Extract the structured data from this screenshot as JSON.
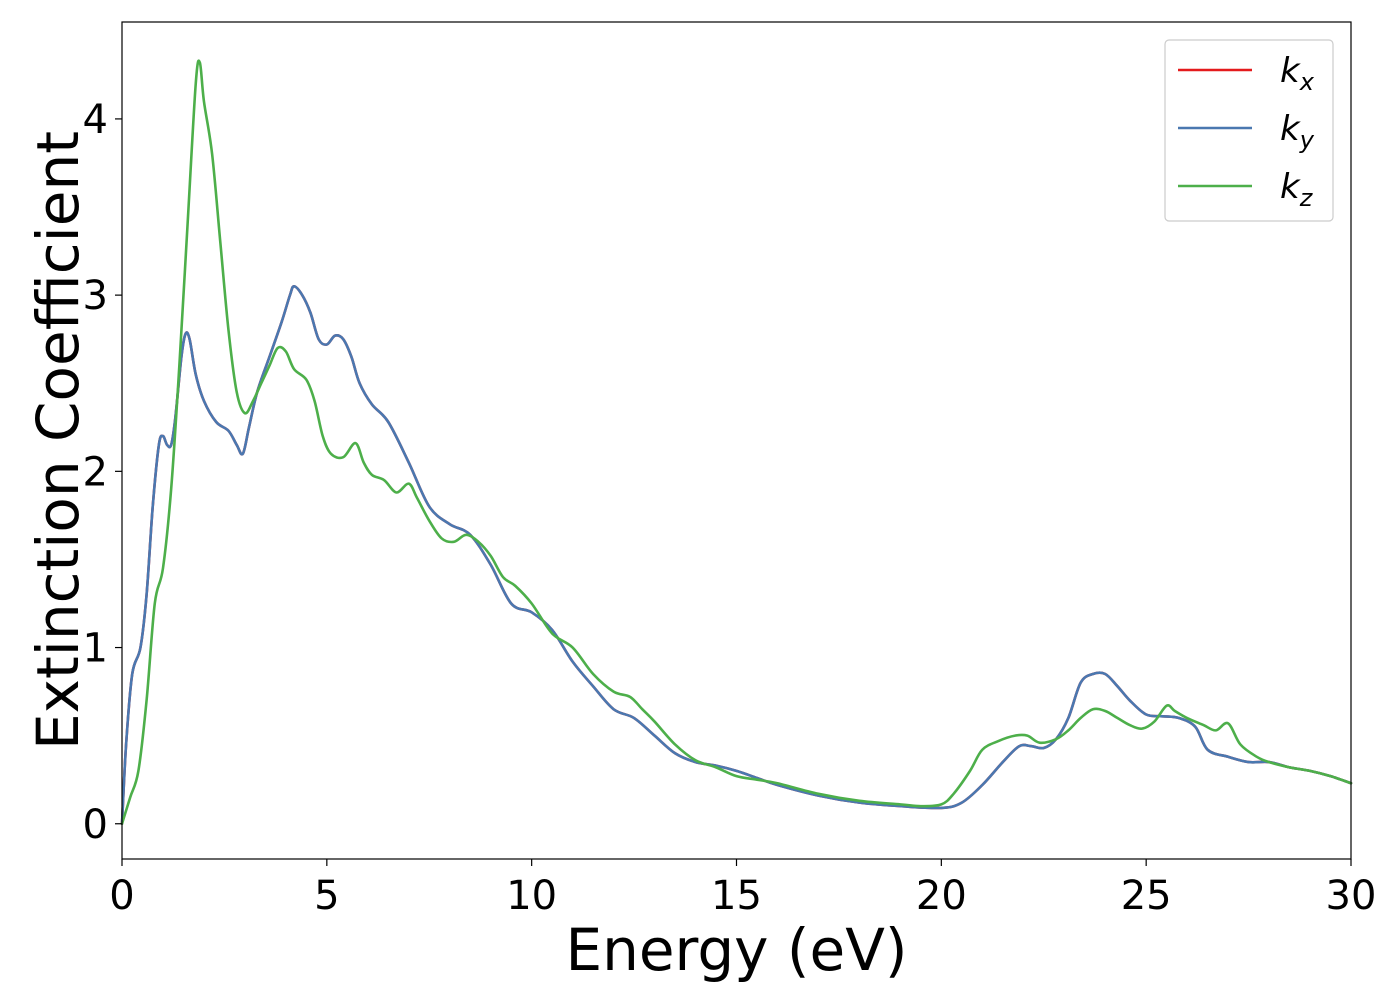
{
  "chart_data": {
    "type": "line",
    "xlabel": "Energy (eV)",
    "ylabel": "Extinction Coefficient",
    "xlim": [
      0,
      30
    ],
    "ylim": [
      -0.2,
      4.55
    ],
    "xticks": [
      0,
      5,
      10,
      15,
      20,
      25,
      30
    ],
    "yticks": [
      0,
      1,
      2,
      3,
      4
    ],
    "xtick_labels": [
      "0",
      "5",
      "10",
      "15",
      "20",
      "25",
      "30"
    ],
    "ytick_labels": [
      "0",
      "1",
      "2",
      "3",
      "4"
    ],
    "grid": false,
    "legend_position": "top-right",
    "series": [
      {
        "name": "k",
        "subscript": "x",
        "color": "#e41a1c",
        "points": [
          [
            0,
            0
          ],
          [
            0.1,
            0.45
          ],
          [
            0.25,
            0.85
          ],
          [
            0.45,
            1.0
          ],
          [
            0.6,
            1.3
          ],
          [
            0.75,
            1.8
          ],
          [
            0.9,
            2.15
          ],
          [
            1.0,
            2.2
          ],
          [
            1.1,
            2.15
          ],
          [
            1.2,
            2.15
          ],
          [
            1.3,
            2.3
          ],
          [
            1.45,
            2.65
          ],
          [
            1.55,
            2.78
          ],
          [
            1.65,
            2.75
          ],
          [
            1.8,
            2.55
          ],
          [
            2.0,
            2.4
          ],
          [
            2.3,
            2.28
          ],
          [
            2.6,
            2.23
          ],
          [
            2.8,
            2.15
          ],
          [
            2.95,
            2.1
          ],
          [
            3.1,
            2.25
          ],
          [
            3.3,
            2.45
          ],
          [
            3.6,
            2.65
          ],
          [
            3.9,
            2.85
          ],
          [
            4.1,
            3.0
          ],
          [
            4.2,
            3.05
          ],
          [
            4.4,
            3.0
          ],
          [
            4.6,
            2.9
          ],
          [
            4.8,
            2.75
          ],
          [
            5.0,
            2.72
          ],
          [
            5.2,
            2.77
          ],
          [
            5.4,
            2.75
          ],
          [
            5.6,
            2.65
          ],
          [
            5.8,
            2.5
          ],
          [
            6.1,
            2.38
          ],
          [
            6.5,
            2.28
          ],
          [
            7.0,
            2.05
          ],
          [
            7.5,
            1.8
          ],
          [
            8.0,
            1.7
          ],
          [
            8.5,
            1.64
          ],
          [
            9.0,
            1.47
          ],
          [
            9.5,
            1.25
          ],
          [
            10.0,
            1.2
          ],
          [
            10.5,
            1.1
          ],
          [
            11.0,
            0.92
          ],
          [
            11.5,
            0.78
          ],
          [
            12.0,
            0.65
          ],
          [
            12.5,
            0.6
          ],
          [
            13.0,
            0.5
          ],
          [
            13.5,
            0.4
          ],
          [
            14.0,
            0.35
          ],
          [
            14.5,
            0.33
          ],
          [
            15.0,
            0.3
          ],
          [
            15.5,
            0.26
          ],
          [
            16.0,
            0.22
          ],
          [
            17.0,
            0.16
          ],
          [
            18.0,
            0.12
          ],
          [
            19.0,
            0.1
          ],
          [
            20.0,
            0.09
          ],
          [
            20.5,
            0.12
          ],
          [
            21.0,
            0.22
          ],
          [
            21.5,
            0.35
          ],
          [
            21.9,
            0.44
          ],
          [
            22.2,
            0.44
          ],
          [
            22.5,
            0.43
          ],
          [
            22.8,
            0.48
          ],
          [
            23.1,
            0.6
          ],
          [
            23.4,
            0.8
          ],
          [
            23.7,
            0.85
          ],
          [
            24.0,
            0.85
          ],
          [
            24.3,
            0.78
          ],
          [
            24.6,
            0.7
          ],
          [
            25.0,
            0.62
          ],
          [
            25.4,
            0.61
          ],
          [
            25.8,
            0.6
          ],
          [
            26.2,
            0.55
          ],
          [
            26.5,
            0.42
          ],
          [
            27.0,
            0.38
          ],
          [
            27.5,
            0.35
          ],
          [
            28.0,
            0.35
          ],
          [
            28.5,
            0.32
          ],
          [
            29.0,
            0.3
          ],
          [
            29.5,
            0.27
          ],
          [
            30.0,
            0.23
          ]
        ]
      },
      {
        "name": "k",
        "subscript": "y",
        "color": "#4a78b0",
        "points": [
          [
            0,
            0
          ],
          [
            0.1,
            0.45
          ],
          [
            0.25,
            0.85
          ],
          [
            0.45,
            1.0
          ],
          [
            0.6,
            1.3
          ],
          [
            0.75,
            1.8
          ],
          [
            0.9,
            2.15
          ],
          [
            1.0,
            2.2
          ],
          [
            1.1,
            2.15
          ],
          [
            1.2,
            2.15
          ],
          [
            1.3,
            2.3
          ],
          [
            1.45,
            2.65
          ],
          [
            1.55,
            2.78
          ],
          [
            1.65,
            2.75
          ],
          [
            1.8,
            2.55
          ],
          [
            2.0,
            2.4
          ],
          [
            2.3,
            2.28
          ],
          [
            2.6,
            2.23
          ],
          [
            2.8,
            2.15
          ],
          [
            2.95,
            2.1
          ],
          [
            3.1,
            2.25
          ],
          [
            3.3,
            2.45
          ],
          [
            3.6,
            2.65
          ],
          [
            3.9,
            2.85
          ],
          [
            4.1,
            3.0
          ],
          [
            4.2,
            3.05
          ],
          [
            4.4,
            3.0
          ],
          [
            4.6,
            2.9
          ],
          [
            4.8,
            2.75
          ],
          [
            5.0,
            2.72
          ],
          [
            5.2,
            2.77
          ],
          [
            5.4,
            2.75
          ],
          [
            5.6,
            2.65
          ],
          [
            5.8,
            2.5
          ],
          [
            6.1,
            2.38
          ],
          [
            6.5,
            2.28
          ],
          [
            7.0,
            2.05
          ],
          [
            7.5,
            1.8
          ],
          [
            8.0,
            1.7
          ],
          [
            8.5,
            1.64
          ],
          [
            9.0,
            1.47
          ],
          [
            9.5,
            1.25
          ],
          [
            10.0,
            1.2
          ],
          [
            10.5,
            1.1
          ],
          [
            11.0,
            0.92
          ],
          [
            11.5,
            0.78
          ],
          [
            12.0,
            0.65
          ],
          [
            12.5,
            0.6
          ],
          [
            13.0,
            0.5
          ],
          [
            13.5,
            0.4
          ],
          [
            14.0,
            0.35
          ],
          [
            14.5,
            0.33
          ],
          [
            15.0,
            0.3
          ],
          [
            15.5,
            0.26
          ],
          [
            16.0,
            0.22
          ],
          [
            17.0,
            0.16
          ],
          [
            18.0,
            0.12
          ],
          [
            19.0,
            0.1
          ],
          [
            20.0,
            0.09
          ],
          [
            20.5,
            0.12
          ],
          [
            21.0,
            0.22
          ],
          [
            21.5,
            0.35
          ],
          [
            21.9,
            0.44
          ],
          [
            22.2,
            0.44
          ],
          [
            22.5,
            0.43
          ],
          [
            22.8,
            0.48
          ],
          [
            23.1,
            0.6
          ],
          [
            23.4,
            0.8
          ],
          [
            23.7,
            0.85
          ],
          [
            24.0,
            0.85
          ],
          [
            24.3,
            0.78
          ],
          [
            24.6,
            0.7
          ],
          [
            25.0,
            0.62
          ],
          [
            25.4,
            0.61
          ],
          [
            25.8,
            0.6
          ],
          [
            26.2,
            0.55
          ],
          [
            26.5,
            0.42
          ],
          [
            27.0,
            0.38
          ],
          [
            27.5,
            0.35
          ],
          [
            28.0,
            0.35
          ],
          [
            28.5,
            0.32
          ],
          [
            29.0,
            0.3
          ],
          [
            29.5,
            0.27
          ],
          [
            30.0,
            0.23
          ]
        ]
      },
      {
        "name": "k",
        "subscript": "z",
        "color": "#4daf4a",
        "points": [
          [
            0,
            0
          ],
          [
            0.2,
            0.15
          ],
          [
            0.4,
            0.3
          ],
          [
            0.6,
            0.7
          ],
          [
            0.8,
            1.25
          ],
          [
            1.0,
            1.45
          ],
          [
            1.2,
            1.9
          ],
          [
            1.4,
            2.6
          ],
          [
            1.6,
            3.4
          ],
          [
            1.8,
            4.2
          ],
          [
            1.9,
            4.32
          ],
          [
            2.0,
            4.1
          ],
          [
            2.2,
            3.8
          ],
          [
            2.4,
            3.3
          ],
          [
            2.6,
            2.8
          ],
          [
            2.8,
            2.45
          ],
          [
            3.0,
            2.33
          ],
          [
            3.2,
            2.4
          ],
          [
            3.4,
            2.5
          ],
          [
            3.6,
            2.6
          ],
          [
            3.8,
            2.7
          ],
          [
            4.0,
            2.68
          ],
          [
            4.2,
            2.58
          ],
          [
            4.5,
            2.52
          ],
          [
            4.7,
            2.4
          ],
          [
            4.9,
            2.2
          ],
          [
            5.1,
            2.1
          ],
          [
            5.4,
            2.08
          ],
          [
            5.7,
            2.16
          ],
          [
            5.9,
            2.05
          ],
          [
            6.1,
            1.98
          ],
          [
            6.4,
            1.95
          ],
          [
            6.7,
            1.88
          ],
          [
            7.0,
            1.93
          ],
          [
            7.2,
            1.85
          ],
          [
            7.5,
            1.72
          ],
          [
            7.8,
            1.62
          ],
          [
            8.1,
            1.6
          ],
          [
            8.4,
            1.64
          ],
          [
            8.7,
            1.6
          ],
          [
            9.0,
            1.52
          ],
          [
            9.3,
            1.4
          ],
          [
            9.6,
            1.35
          ],
          [
            10.0,
            1.25
          ],
          [
            10.5,
            1.08
          ],
          [
            11.0,
            1.0
          ],
          [
            11.5,
            0.85
          ],
          [
            12.0,
            0.75
          ],
          [
            12.4,
            0.72
          ],
          [
            12.7,
            0.65
          ],
          [
            13.0,
            0.58
          ],
          [
            13.5,
            0.45
          ],
          [
            14.0,
            0.36
          ],
          [
            14.5,
            0.32
          ],
          [
            15.0,
            0.27
          ],
          [
            15.5,
            0.25
          ],
          [
            16.0,
            0.23
          ],
          [
            17.0,
            0.17
          ],
          [
            18.0,
            0.13
          ],
          [
            19.0,
            0.11
          ],
          [
            19.5,
            0.1
          ],
          [
            20.0,
            0.11
          ],
          [
            20.3,
            0.17
          ],
          [
            20.7,
            0.3
          ],
          [
            21.0,
            0.42
          ],
          [
            21.4,
            0.47
          ],
          [
            21.8,
            0.5
          ],
          [
            22.1,
            0.5
          ],
          [
            22.4,
            0.46
          ],
          [
            22.8,
            0.48
          ],
          [
            23.1,
            0.53
          ],
          [
            23.4,
            0.6
          ],
          [
            23.7,
            0.65
          ],
          [
            24.0,
            0.64
          ],
          [
            24.3,
            0.6
          ],
          [
            24.6,
            0.56
          ],
          [
            24.9,
            0.54
          ],
          [
            25.2,
            0.58
          ],
          [
            25.5,
            0.67
          ],
          [
            25.7,
            0.64
          ],
          [
            26.0,
            0.6
          ],
          [
            26.4,
            0.56
          ],
          [
            26.7,
            0.53
          ],
          [
            27.0,
            0.57
          ],
          [
            27.3,
            0.45
          ],
          [
            27.7,
            0.38
          ],
          [
            28.0,
            0.35
          ],
          [
            28.5,
            0.32
          ],
          [
            29.0,
            0.3
          ],
          [
            29.5,
            0.27
          ],
          [
            30.0,
            0.23
          ]
        ]
      }
    ]
  }
}
